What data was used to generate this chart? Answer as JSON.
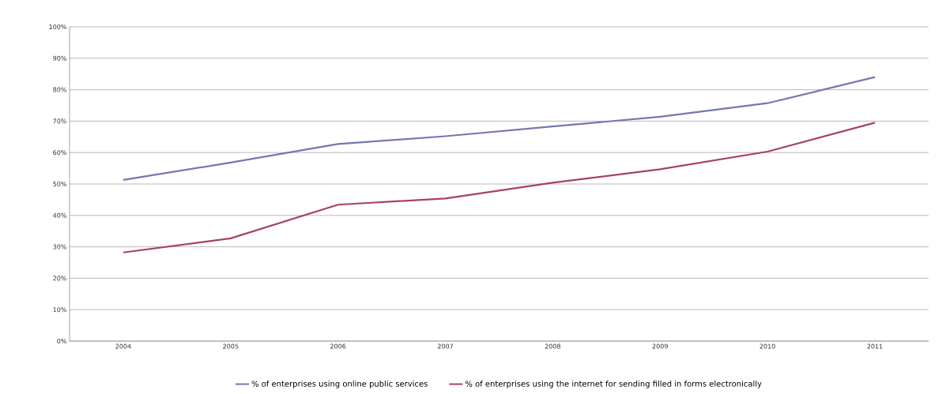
{
  "chart_data": {
    "type": "line",
    "categories": [
      "2004",
      "2005",
      "2006",
      "2007",
      "2008",
      "2009",
      "2010",
      "2011"
    ],
    "series": [
      {
        "name": "% of enterprises using online public services",
        "color": "#7478b0",
        "values": [
          51.3,
          56.8,
          62.7,
          65.2,
          68.3,
          71.4,
          75.7,
          84.0
        ]
      },
      {
        "name": "% of enterprises using the internet for sending filled in forms electronically",
        "color": "#a8406c",
        "values": [
          28.2,
          32.7,
          43.4,
          45.4,
          50.4,
          54.7,
          60.3,
          69.5
        ]
      }
    ],
    "ylim": [
      0,
      100
    ],
    "yticks": [
      {
        "value": 0,
        "label": "0%"
      },
      {
        "value": 10,
        "label": "10%"
      },
      {
        "value": 20,
        "label": "20%"
      },
      {
        "value": 30,
        "label": "30%"
      },
      {
        "value": 40,
        "label": "40%"
      },
      {
        "value": 50,
        "label": "50%"
      },
      {
        "value": 60,
        "label": "60%"
      },
      {
        "value": 70,
        "label": "70%"
      },
      {
        "value": 80,
        "label": "80%"
      },
      {
        "value": 90,
        "label": "90%"
      },
      {
        "value": 100,
        "label": "100%"
      }
    ],
    "grid": "y",
    "legend": "bottom",
    "marker": "none",
    "line_style": "solid"
  }
}
